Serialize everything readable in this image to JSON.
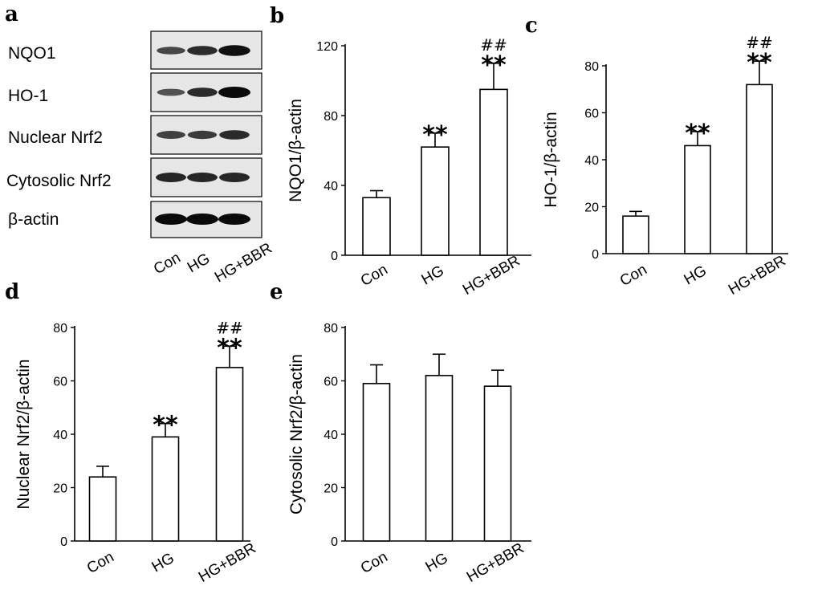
{
  "panels": {
    "a": "a",
    "b": "b",
    "c": "c",
    "d": "d",
    "e": "e"
  },
  "blot": {
    "rows": [
      "NQO1",
      "HO-1",
      "Nuclear Nrf2",
      "Cytosolic Nrf2",
      "β-actin"
    ],
    "lanes": [
      "Con",
      "HG",
      "HG+BBR"
    ],
    "band_intensity": [
      [
        0.45,
        0.7,
        0.95
      ],
      [
        0.35,
        0.7,
        1.0
      ],
      [
        0.5,
        0.55,
        0.7
      ],
      [
        0.75,
        0.75,
        0.75
      ],
      [
        1.0,
        1.0,
        1.0
      ]
    ]
  },
  "chart_data": [
    {
      "id": "b",
      "type": "bar",
      "categories": [
        "Con",
        "HG",
        "HG+BBR"
      ],
      "values": [
        33,
        62,
        95
      ],
      "errors": [
        4,
        8,
        15
      ],
      "stars": [
        "",
        "**",
        "**"
      ],
      "hashes": [
        "",
        "",
        "##"
      ],
      "ylabel": "NQO1/β-actin",
      "ylim": [
        0,
        120
      ],
      "yticks": [
        "0",
        "40",
        "80",
        "120"
      ],
      "ytick_values": [
        0,
        40,
        80,
        120
      ]
    },
    {
      "id": "c",
      "type": "bar",
      "categories": [
        "Con",
        "HG",
        "HG+BBR"
      ],
      "values": [
        16,
        46,
        72
      ],
      "errors": [
        2,
        6,
        10
      ],
      "stars": [
        "",
        "**",
        "**"
      ],
      "hashes": [
        "",
        "",
        "##"
      ],
      "ylabel": "HO-1/β-actin",
      "ylim": [
        0,
        80
      ],
      "yticks": [
        "0",
        "20",
        "40",
        "60",
        "80"
      ],
      "ytick_values": [
        0,
        20,
        40,
        60,
        80
      ]
    },
    {
      "id": "d",
      "type": "bar",
      "categories": [
        "Con",
        "HG",
        "HG+BBR"
      ],
      "values": [
        24,
        39,
        65
      ],
      "errors": [
        4,
        5,
        8
      ],
      "stars": [
        "",
        "**",
        "**"
      ],
      "hashes": [
        "",
        "",
        "##"
      ],
      "ylabel": "Nuclear Nrf2/β-actin",
      "ylim": [
        0,
        80
      ],
      "yticks": [
        "0",
        "20",
        "40",
        "60",
        "80"
      ],
      "ytick_values": [
        0,
        20,
        40,
        60,
        80
      ]
    },
    {
      "id": "e",
      "type": "bar",
      "categories": [
        "Con",
        "HG",
        "HG+BBR"
      ],
      "values": [
        59,
        62,
        58
      ],
      "errors": [
        7,
        8,
        6
      ],
      "stars": [
        "",
        "",
        ""
      ],
      "hashes": [
        "",
        "",
        ""
      ],
      "ylabel": "Cytosolic Nrf2/β-actin",
      "ylim": [
        0,
        80
      ],
      "yticks": [
        "0",
        "20",
        "40",
        "60",
        "80"
      ],
      "ytick_values": [
        0,
        20,
        40,
        60,
        80
      ]
    }
  ]
}
